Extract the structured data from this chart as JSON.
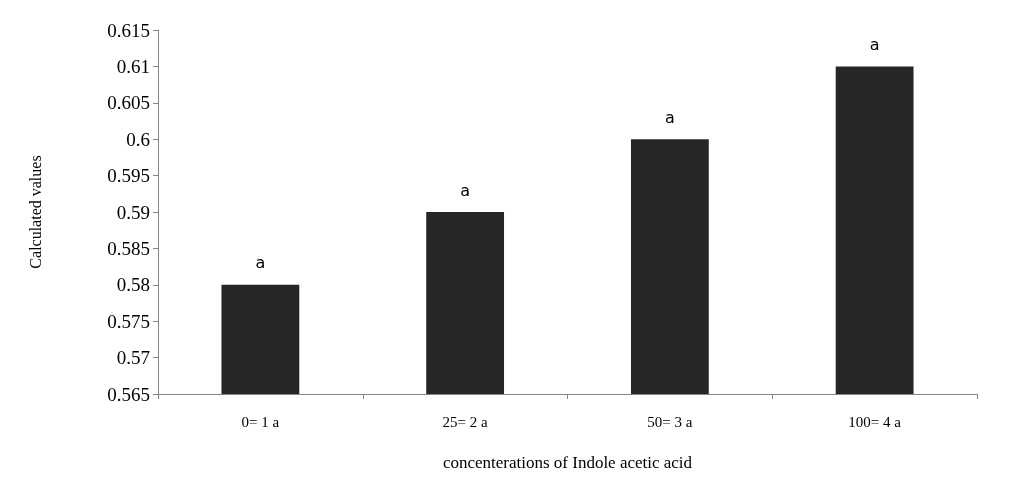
{
  "chart_data": {
    "type": "bar",
    "xlabel": "concenterations of Indole acetic acid",
    "ylabel": "Calculated values",
    "categories": [
      "0= 1 a",
      "25= 2 a",
      "50= 3 a",
      "100= 4 a"
    ],
    "values": [
      0.58,
      0.59,
      0.6,
      0.61
    ],
    "color": "#262626",
    "ylim": [
      0.565,
      0.615
    ],
    "yticks": [
      0.565,
      0.57,
      0.575,
      0.58,
      0.585,
      0.59,
      0.595,
      0.6,
      0.605,
      0.61,
      0.615
    ],
    "grid": false,
    "annotations": [
      {
        "text": "a",
        "x": "0= 1 a",
        "y": 0.58
      },
      {
        "text": "a",
        "x": "25= 2 a",
        "y": 0.59
      },
      {
        "text": "a",
        "x": "50= 3 a",
        "y": 0.6
      },
      {
        "text": "a",
        "x": "100= 4 a",
        "y": 0.61
      }
    ]
  }
}
